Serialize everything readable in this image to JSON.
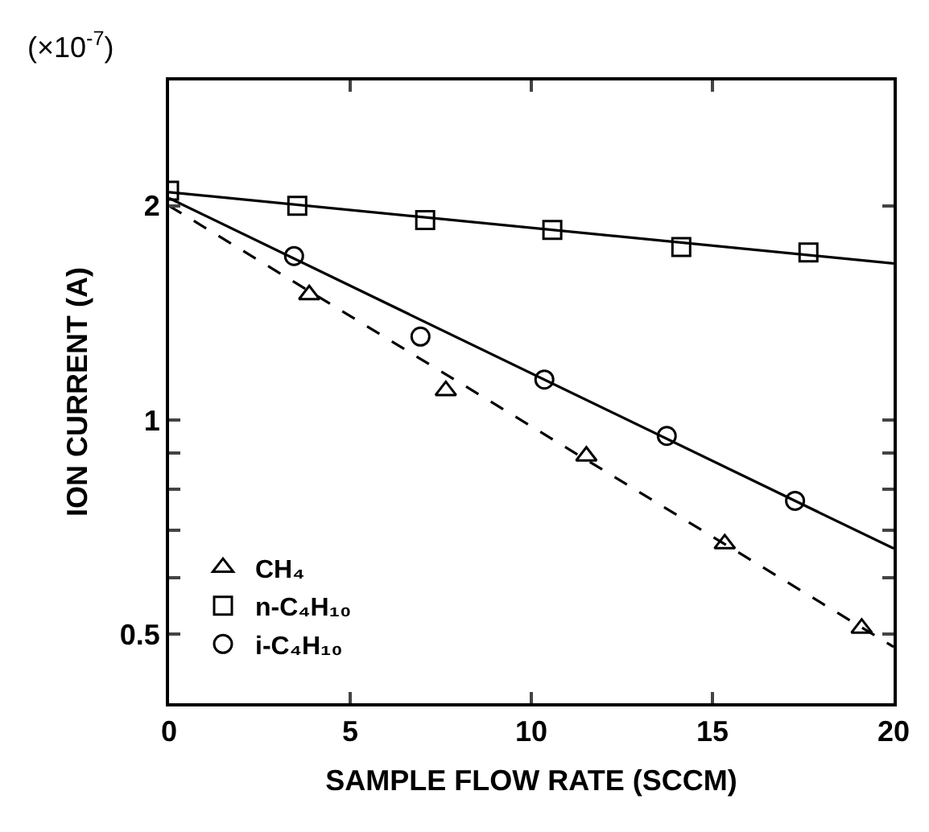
{
  "chart_data": {
    "type": "scatter",
    "xlabel": "SAMPLE FLOW RATE (SCCM)",
    "ylabel": "ION CURRENT (A)",
    "annotations": [
      "(×10$^{-7}$)"
    ],
    "log": "y",
    "legend": "bottom left",
    "xlim": [
      0,
      20
    ],
    "xticks": [
      0,
      5,
      10,
      15,
      20
    ],
    "ylim": [
      0.4,
      3.0
    ],
    "yticks": [
      0.5,
      {
        "value": 0.6,
        "label": null
      },
      {
        "value": 0.7,
        "label": null
      },
      {
        "value": 0.8,
        "label": null
      },
      {
        "value": 0.9,
        "label": null
      },
      1,
      2
    ],
    "series": [
      {
        "name": "CH₄",
        "marker": "triangle",
        "color": "#000000",
        "x": [
          3.87,
          7.64,
          11.52,
          15.34,
          19.12
        ],
        "values": [
          1.5,
          1.1,
          0.89,
          0.67,
          0.51
        ]
      },
      {
        "name": "n-C₄H₁₀",
        "marker": "square",
        "color": "#000000",
        "x": [
          0,
          3.54,
          7.07,
          10.58,
          14.14,
          17.65
        ],
        "values": [
          2.1,
          2.0,
          1.91,
          1.85,
          1.75,
          1.72
        ]
      },
      {
        "name": "i-C₄H₁₀",
        "marker": "circle",
        "color": "#000000",
        "x": [
          3.45,
          6.94,
          10.36,
          13.74,
          17.28
        ],
        "values": [
          1.7,
          1.31,
          1.14,
          0.95,
          0.77
        ]
      },
      {
        "type": "line",
        "line_style": "dashed",
        "color": "#000000",
        "x": [
          0,
          20
        ],
        "values": [
          2.0,
          0.48
        ]
      },
      {
        "type": "line",
        "line_style": "solid",
        "color": "#000000",
        "x": [
          0,
          20
        ],
        "values": [
          2.09,
          1.66
        ]
      },
      {
        "type": "line",
        "line_style": "solid",
        "color": "#000000",
        "x": [
          0,
          20
        ],
        "values": [
          2.05,
          0.66
        ]
      }
    ]
  }
}
